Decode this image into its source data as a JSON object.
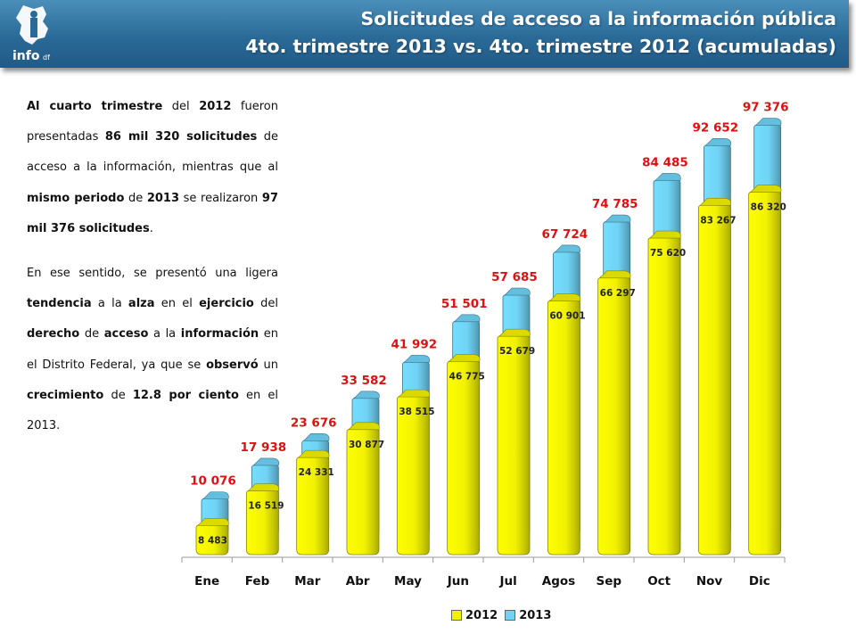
{
  "header": {
    "title_line1": "Solicitudes de acceso a la información pública",
    "title_line2": "4to. trimestre 2013 vs. 4to. trimestre 2012 (acumuladas)",
    "logo_text": "info",
    "logo_suffix": "df"
  },
  "text": {
    "paragraph1": [
      {
        "t": "Al cuarto trimestre",
        "b": true
      },
      {
        "t": " del ",
        "b": false
      },
      {
        "t": "2012",
        "b": true
      },
      {
        "t": " fueron presentadas ",
        "b": false
      },
      {
        "t": "86 mil 320 solicitudes",
        "b": true
      },
      {
        "t": " de acceso a la información, mientras que al ",
        "b": false
      },
      {
        "t": "mismo periodo",
        "b": true
      },
      {
        "t": " de ",
        "b": false
      },
      {
        "t": "2013",
        "b": true
      },
      {
        "t": " se realizaron ",
        "b": false
      },
      {
        "t": "97 mil 376 solicitudes",
        "b": true
      },
      {
        "t": ".",
        "b": false
      }
    ],
    "paragraph2": [
      {
        "t": "En ese sentido, se presentó una ligera ",
        "b": false
      },
      {
        "t": "tendencia",
        "b": true
      },
      {
        "t": " a la ",
        "b": false
      },
      {
        "t": "alza",
        "b": true
      },
      {
        "t": " en el ",
        "b": false
      },
      {
        "t": "ejercicio",
        "b": true
      },
      {
        "t": " del ",
        "b": false
      },
      {
        "t": "derecho",
        "b": true
      },
      {
        "t": " de ",
        "b": false
      },
      {
        "t": "acceso",
        "b": true
      },
      {
        "t": " a la ",
        "b": false
      },
      {
        "t": "información",
        "b": true
      },
      {
        "t": " en el Distrito Federal, ya que se ",
        "b": false
      },
      {
        "t": "observó",
        "b": true
      },
      {
        "t": " un ",
        "b": false
      },
      {
        "t": "crecimiento",
        "b": true
      },
      {
        "t": " de ",
        "b": false
      },
      {
        "t": "12.8 por ciento",
        "b": true
      },
      {
        "t": " en el 2013.",
        "b": false
      }
    ]
  },
  "chart_data": {
    "type": "bar",
    "title": "Solicitudes de acceso a la información pública",
    "categories": [
      "Ene",
      "Feb",
      "Mar",
      "Abr",
      "May",
      "Jun",
      "Jul",
      "Agos",
      "Sep",
      "Oct",
      "Nov",
      "Dic"
    ],
    "series": [
      {
        "name": "2012",
        "values": [
          8483,
          16519,
          24331,
          30877,
          38515,
          46775,
          52679,
          60901,
          66297,
          75620,
          83267,
          86320
        ],
        "labels": [
          "8 483",
          "16 519",
          "24 331",
          "30 877",
          "38 515",
          "46 775",
          "52 679",
          "60 901",
          "66 297",
          "75 620",
          "83 267",
          "86 320"
        ],
        "color": "#f2f200"
      },
      {
        "name": "2013",
        "values": [
          10076,
          17938,
          23676,
          33582,
          41992,
          51501,
          57685,
          67724,
          74785,
          84485,
          92652,
          97376
        ],
        "labels": [
          "10 076",
          "17 938",
          "23 676",
          "33 582",
          "41 992",
          "51 501",
          "57 685",
          "67 724",
          "74 785",
          "84 485",
          "92 652",
          "97 376"
        ],
        "color": "#6fd3f5"
      }
    ],
    "ylim": [
      0,
      100000
    ],
    "grid": false,
    "legend_position": "bottom",
    "label_color_2013": "#e01010"
  }
}
